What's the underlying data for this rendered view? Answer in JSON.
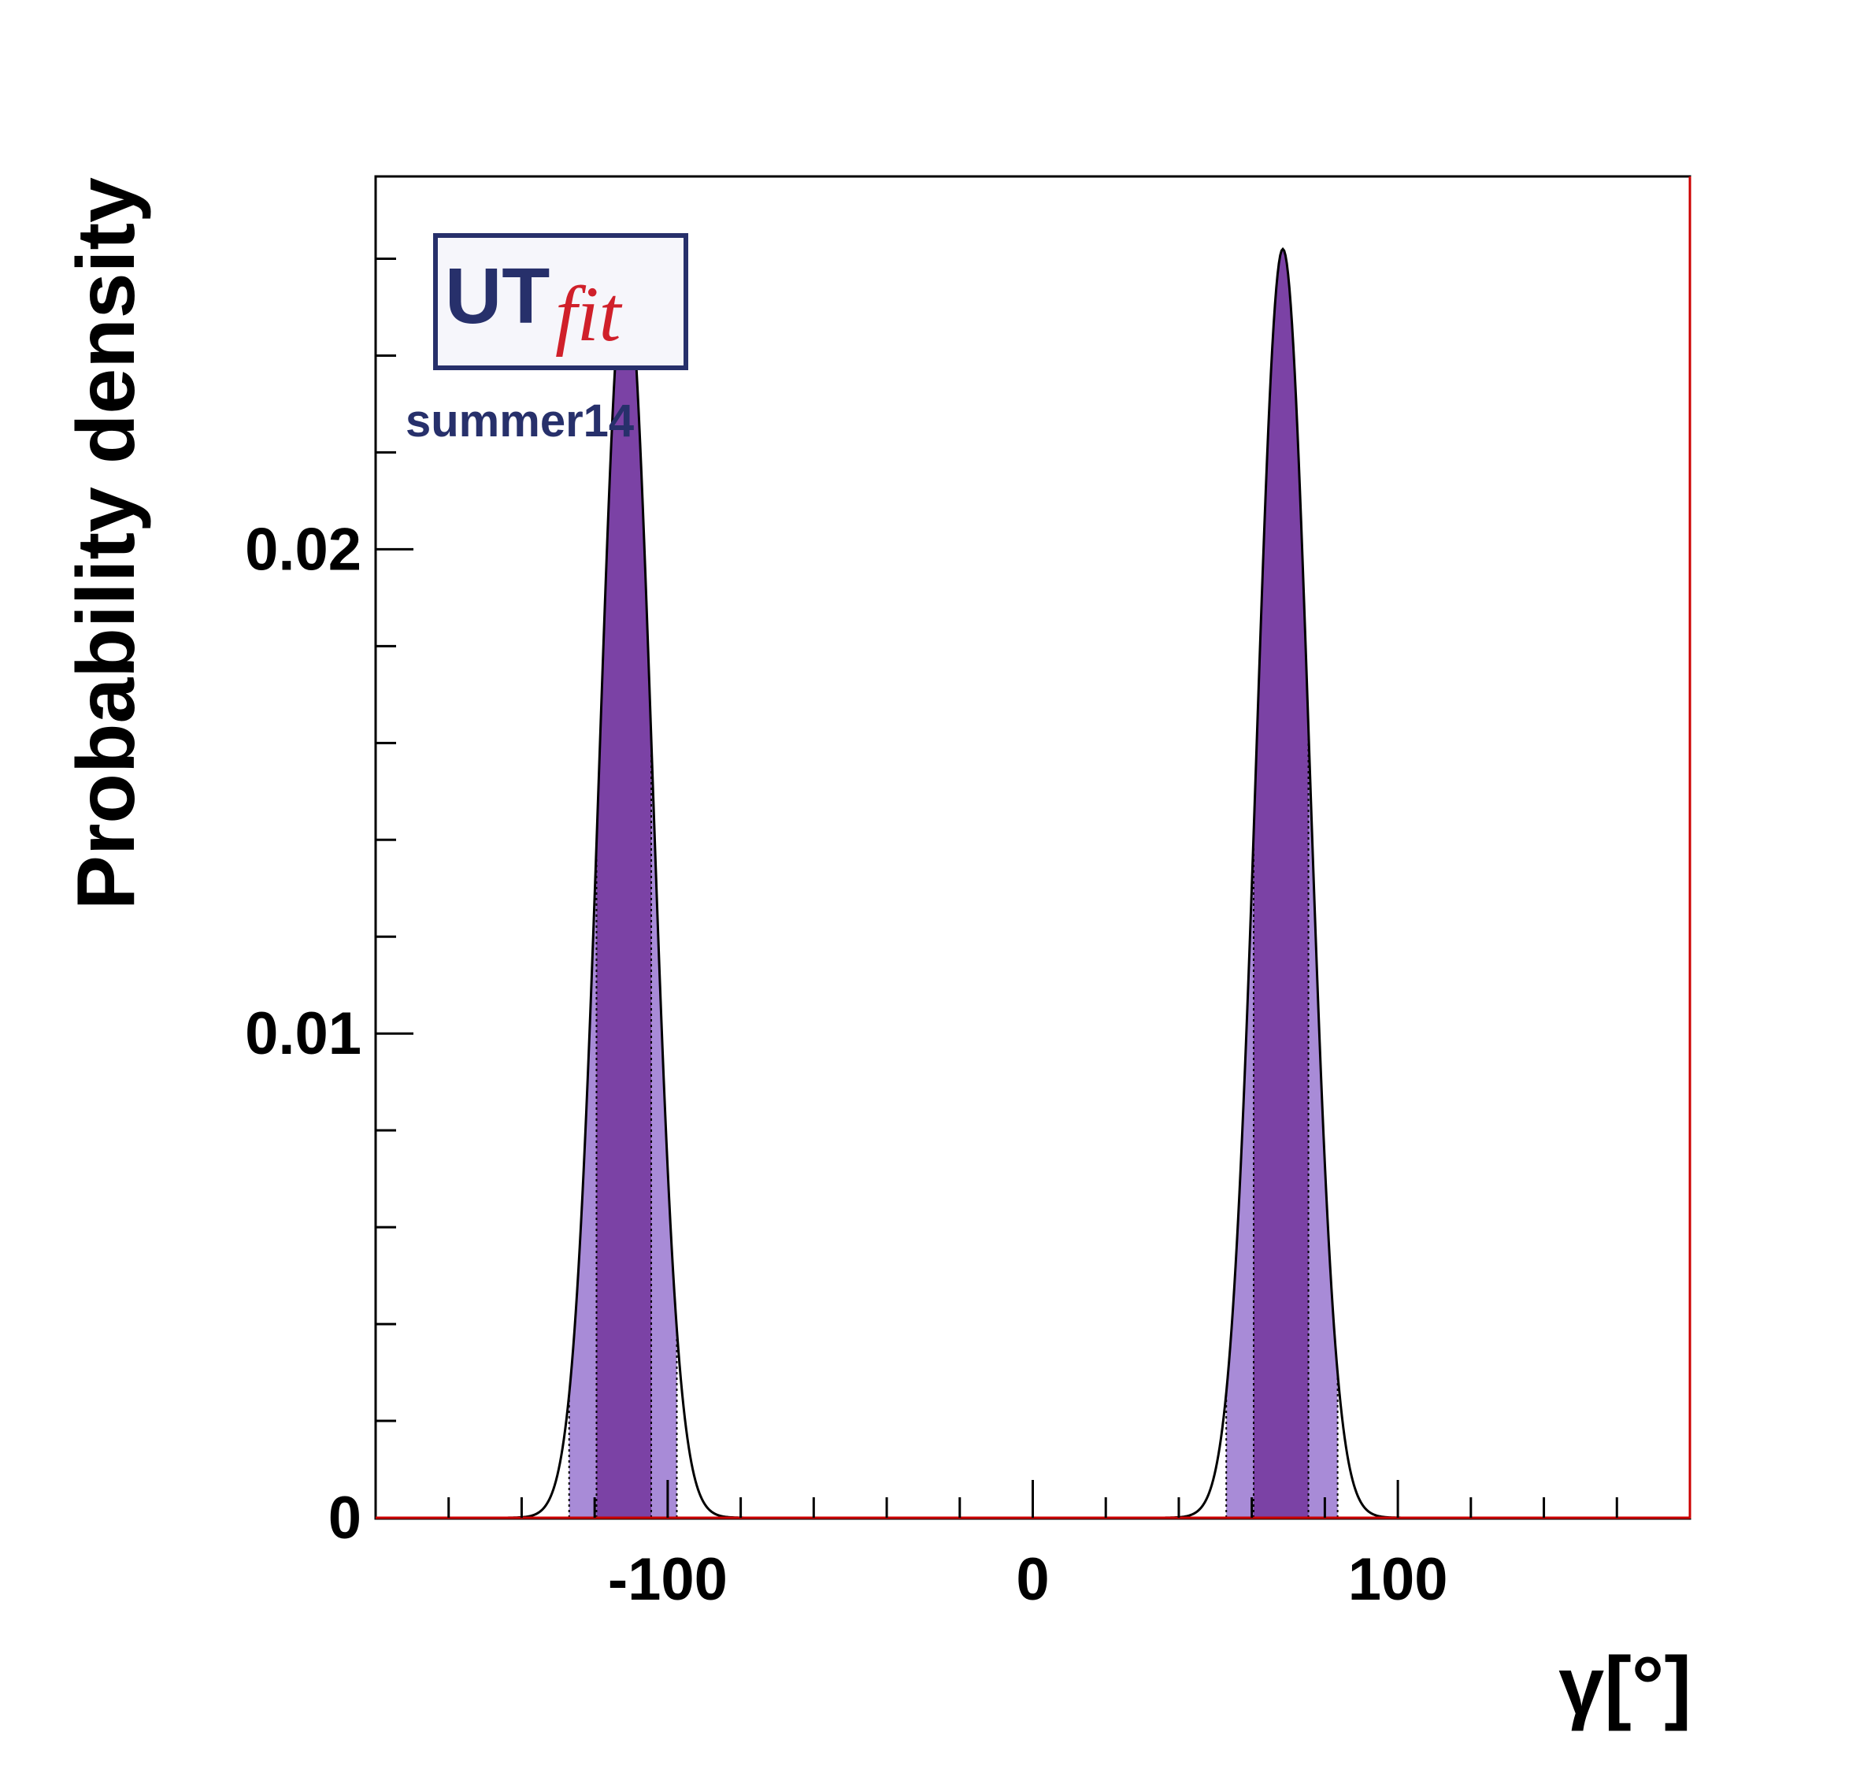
{
  "chart_data": {
    "type": "area",
    "xlabel": "γ[°]",
    "ylabel": "Probability density",
    "xlim": [
      -180,
      180
    ],
    "ylim": [
      0,
      0.0277
    ],
    "x_ticks": [
      -100,
      0,
      100
    ],
    "x_tick_labels": [
      "-100",
      "0",
      "100"
    ],
    "y_ticks": [
      0,
      0.01,
      0.02
    ],
    "y_tick_labels": [
      "0",
      "0.01",
      "0.02"
    ],
    "grid": false,
    "legend": null,
    "logo": {
      "text_main": "UT",
      "text_accent": "fit",
      "subtitle": "summer14"
    },
    "peaks": [
      {
        "mean": -111.5,
        "sigma": 7.2,
        "height": 0.0258,
        "interval_68": [
          -119.5,
          -104.5
        ],
        "interval_95": [
          -127,
          -97.5
        ]
      },
      {
        "mean": 68.5,
        "sigma": 7.2,
        "height": 0.0262,
        "interval_68": [
          60.5,
          75.5
        ],
        "interval_95": [
          53,
          83.5
        ]
      }
    ],
    "colors": {
      "fill_68": "#7b42a5",
      "fill_95": "#a88bd7",
      "curve": "#000000",
      "baseline": "#cc0000",
      "logo_blue": "#27306b",
      "logo_red": "#d0202a"
    }
  }
}
